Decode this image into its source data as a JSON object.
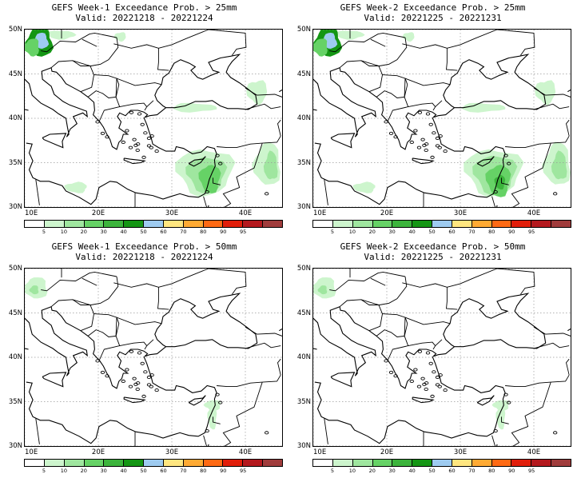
{
  "panels": [
    {
      "title_line1": "GEFS Week-1 Exceedance Prob. > 25mm",
      "title_line2": "Valid: 20221218 - 20221224",
      "blobs": [
        {
          "lon": 12.0,
          "lat": 48.6,
          "rx": 1.8,
          "ry": 1.7,
          "level": 5
        },
        {
          "lon": 12.2,
          "lat": 48.7,
          "rx": 1.0,
          "ry": 0.9,
          "level": 6
        },
        {
          "lon": 11.0,
          "lat": 48.0,
          "rx": 1.0,
          "ry": 1.0,
          "level": 3
        },
        {
          "lon": 15.0,
          "lat": 49.4,
          "rx": 1.8,
          "ry": 0.5,
          "level": 1
        },
        {
          "lon": 23.0,
          "lat": 49.2,
          "rx": 0.8,
          "ry": 0.5,
          "level": 1
        },
        {
          "lon": 41.6,
          "lat": 43.0,
          "rx": 1.4,
          "ry": 1.3,
          "level": 1
        },
        {
          "lon": 33.0,
          "lat": 41.2,
          "rx": 3.0,
          "ry": 0.5,
          "level": 1
        },
        {
          "lon": 34.5,
          "lat": 34.0,
          "rx": 3.8,
          "ry": 2.6,
          "level": 1
        },
        {
          "lon": 34.7,
          "lat": 33.7,
          "rx": 2.6,
          "ry": 2.0,
          "level": 2
        },
        {
          "lon": 35.2,
          "lat": 33.2,
          "rx": 1.4,
          "ry": 1.6,
          "level": 3
        },
        {
          "lon": 43.0,
          "lat": 34.8,
          "rx": 1.8,
          "ry": 2.4,
          "level": 1
        },
        {
          "lon": 43.5,
          "lat": 34.6,
          "rx": 0.9,
          "ry": 1.6,
          "level": 2
        },
        {
          "lon": 17.0,
          "lat": 32.2,
          "rx": 1.5,
          "ry": 0.6,
          "level": 1
        }
      ]
    },
    {
      "title_line1": "GEFS Week-2 Exceedance Prob. > 25mm",
      "title_line2": "Valid: 20221225 - 20221231",
      "blobs": [
        {
          "lon": 12.0,
          "lat": 48.6,
          "rx": 1.8,
          "ry": 1.7,
          "level": 5
        },
        {
          "lon": 12.2,
          "lat": 48.7,
          "rx": 1.0,
          "ry": 0.9,
          "level": 6
        },
        {
          "lon": 11.0,
          "lat": 48.0,
          "rx": 1.0,
          "ry": 1.0,
          "level": 3
        },
        {
          "lon": 15.0,
          "lat": 49.4,
          "rx": 1.8,
          "ry": 0.5,
          "level": 1
        },
        {
          "lon": 23.0,
          "lat": 49.2,
          "rx": 0.8,
          "ry": 0.5,
          "level": 1
        },
        {
          "lon": 41.6,
          "lat": 43.0,
          "rx": 1.4,
          "ry": 1.3,
          "level": 1
        },
        {
          "lon": 33.0,
          "lat": 41.2,
          "rx": 3.0,
          "ry": 0.5,
          "level": 1
        },
        {
          "lon": 34.5,
          "lat": 34.0,
          "rx": 3.8,
          "ry": 2.6,
          "level": 1
        },
        {
          "lon": 34.7,
          "lat": 33.7,
          "rx": 2.8,
          "ry": 2.2,
          "level": 2
        },
        {
          "lon": 35.2,
          "lat": 33.0,
          "rx": 1.6,
          "ry": 1.8,
          "level": 3
        },
        {
          "lon": 35.4,
          "lat": 32.8,
          "rx": 0.7,
          "ry": 0.8,
          "level": 4
        },
        {
          "lon": 43.2,
          "lat": 34.8,
          "rx": 1.8,
          "ry": 2.4,
          "level": 1
        },
        {
          "lon": 43.5,
          "lat": 34.6,
          "rx": 1.0,
          "ry": 1.6,
          "level": 2
        },
        {
          "lon": 17.0,
          "lat": 32.2,
          "rx": 1.5,
          "ry": 0.6,
          "level": 1
        }
      ]
    },
    {
      "title_line1": "GEFS Week-1 Exceedance Prob. > 50mm",
      "title_line2": "Valid: 20221218 - 20221224",
      "blobs": [
        {
          "lon": 11.5,
          "lat": 47.8,
          "rx": 1.6,
          "ry": 1.2,
          "level": 1
        },
        {
          "lon": 11.3,
          "lat": 47.6,
          "rx": 0.6,
          "ry": 0.5,
          "level": 2
        },
        {
          "lon": 35.6,
          "lat": 34.6,
          "rx": 1.1,
          "ry": 0.6,
          "level": 1
        },
        {
          "lon": 35.5,
          "lat": 33.2,
          "rx": 0.6,
          "ry": 1.3,
          "level": 1
        }
      ]
    },
    {
      "title_line1": "GEFS Week-2 Exceedance Prob. > 50mm",
      "title_line2": "Valid: 20221225 - 20221231",
      "blobs": [
        {
          "lon": 11.5,
          "lat": 47.8,
          "rx": 1.6,
          "ry": 1.2,
          "level": 1
        },
        {
          "lon": 11.3,
          "lat": 47.6,
          "rx": 0.6,
          "ry": 0.5,
          "level": 2
        },
        {
          "lon": 35.6,
          "lat": 34.6,
          "rx": 1.1,
          "ry": 0.6,
          "level": 1
        },
        {
          "lon": 35.5,
          "lat": 33.2,
          "rx": 0.6,
          "ry": 1.3,
          "level": 1
        }
      ]
    }
  ],
  "map": {
    "lon_min": 10,
    "lon_max": 45,
    "lat_min": 30,
    "lat_max": 50,
    "x_ticks": [
      10,
      20,
      30,
      40
    ],
    "x_tick_labels": [
      "10E",
      "20E",
      "30E",
      "40E"
    ],
    "y_ticks": [
      30,
      35,
      40,
      45,
      50
    ],
    "y_tick_labels": [
      "30N",
      "35N",
      "40N",
      "45N",
      "50N"
    ]
  },
  "colorbar": {
    "labels": [
      "5",
      "10",
      "20",
      "30",
      "40",
      "50",
      "60",
      "70",
      "80",
      "90",
      "95"
    ],
    "colors": [
      "#ffffff",
      "#cdf5cd",
      "#9fe69f",
      "#66d266",
      "#3cb43c",
      "#149614",
      "#9ecbf0",
      "#ffe680",
      "#ffaa33",
      "#ff6a14",
      "#e11e0a",
      "#b4191e",
      "#a03c3c"
    ]
  }
}
